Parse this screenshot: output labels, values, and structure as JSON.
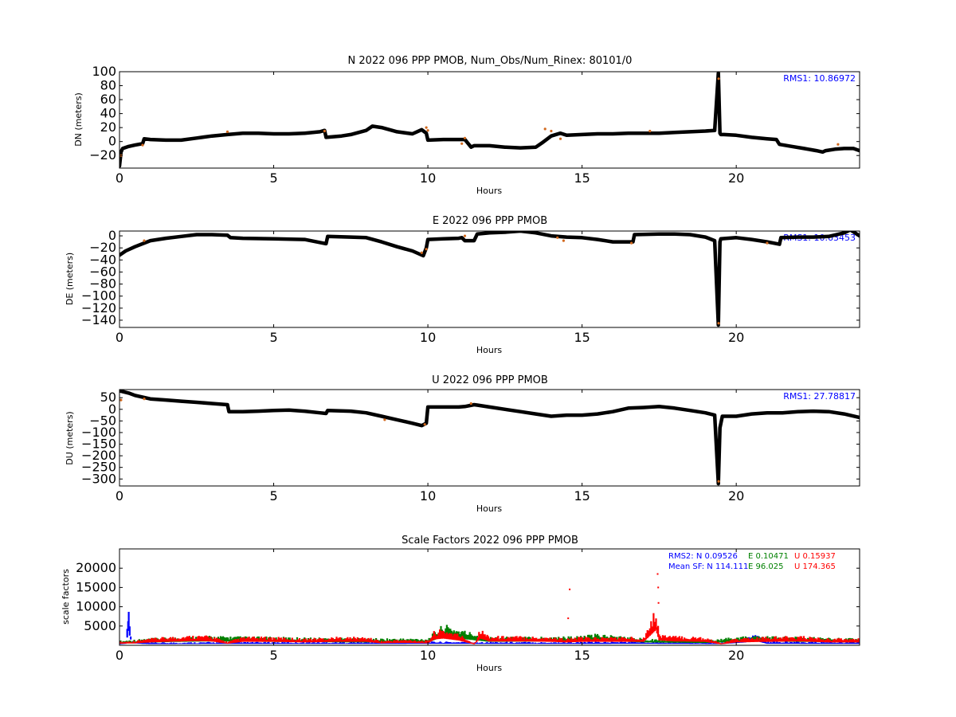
{
  "chart_data": [
    {
      "id": "n",
      "type": "scatter",
      "title": "N 2022 096 PPP  PMOB, Num_Obs/Num_Rinex: 80101/0",
      "xlabel": "Hours",
      "ylabel": "DN (meters)",
      "xlim": [
        0,
        24
      ],
      "ylim": [
        -38,
        100
      ],
      "xticks": [
        "0",
        "5",
        "10",
        "15",
        "20"
      ],
      "yticks": [
        "100",
        "80",
        "60",
        "40",
        "20",
        "0",
        "−20"
      ],
      "ytick_values": [
        100,
        80,
        60,
        40,
        20,
        0,
        -20
      ],
      "annotation": "RMS1: 10.86972",
      "colors": {
        "series": "#000000",
        "outlier": "#d2691e",
        "annotation": "#0000ff"
      },
      "series": [
        {
          "x": [
            0,
            0.05,
            0.1,
            0.3,
            0.5,
            0.75,
            0.8,
            1.0,
            1.5,
            2.0,
            2.5,
            3.0,
            3.5,
            4.0,
            4.5,
            5.0,
            5.5,
            6.0,
            6.5,
            6.65,
            6.7,
            7.2,
            7.5,
            8.0,
            8.2,
            8.5,
            9.0,
            9.5,
            9.8,
            9.95,
            10.0,
            10.5,
            11.0,
            11.2,
            11.4,
            11.5,
            12.0,
            12.5,
            13.0,
            13.5,
            13.7,
            14.0,
            14.3,
            14.5,
            15.0,
            15.5,
            16.0,
            16.5,
            17.0,
            17.5,
            18.0,
            18.5,
            19.0,
            19.3,
            19.42,
            19.47,
            19.5,
            19.6,
            20.0,
            20.5,
            21.0,
            21.3,
            21.4,
            21.8,
            22.2,
            22.6,
            22.8,
            22.9,
            23.2,
            23.5,
            23.8,
            24.0
          ],
          "y": [
            -35,
            -15,
            -10,
            -7,
            -5,
            -3,
            4,
            3,
            2,
            2,
            5,
            8,
            10,
            12,
            12,
            11,
            11,
            12,
            14,
            16,
            6,
            8,
            10,
            16,
            22,
            20,
            14,
            11,
            17,
            12,
            2,
            3,
            3,
            3,
            -8,
            -6,
            -6,
            -8,
            -9,
            -8,
            -2,
            8,
            12,
            9,
            10,
            11,
            11,
            12,
            12,
            12,
            13,
            14,
            15,
            16,
            98,
            12,
            10,
            10,
            9,
            6,
            4,
            3,
            -4,
            -7,
            -10,
            -13,
            -15,
            -13,
            -11,
            -10,
            -10,
            -13
          ]
        }
      ],
      "outliers": {
        "x": [
          0.05,
          0.75,
          3.5,
          6.65,
          9.95,
          10.0,
          11.1,
          11.2,
          13.8,
          14.0,
          14.3,
          17.2,
          19.43,
          23.3
        ],
        "y": [
          -20,
          -5,
          14,
          15,
          20,
          16,
          -3,
          5,
          18,
          15,
          4,
          15,
          90,
          -4
        ]
      }
    },
    {
      "id": "e",
      "type": "scatter",
      "title": "E 2022 096 PPP  PMOB",
      "xlabel": "Hours",
      "ylabel": "DE (meters)",
      "xlim": [
        0,
        24
      ],
      "ylim": [
        -152,
        8
      ],
      "xticks": [
        "0",
        "5",
        "10",
        "15",
        "20"
      ],
      "yticks": [
        "0",
        "−20",
        "−40",
        "−60",
        "−80",
        "−100",
        "−120",
        "−140"
      ],
      "ytick_values": [
        0,
        -20,
        -40,
        -60,
        -80,
        -100,
        -120,
        -140
      ],
      "annotation": "RMS1: 10.63453",
      "colors": {
        "series": "#000000",
        "outlier": "#d2691e",
        "annotation": "#0000ff"
      },
      "series": [
        {
          "x": [
            0,
            0.2,
            0.5,
            1.0,
            1.5,
            2.0,
            2.5,
            3.0,
            3.5,
            3.6,
            4.0,
            5.0,
            6.0,
            6.7,
            6.75,
            7.5,
            8.0,
            8.5,
            9.0,
            9.5,
            9.85,
            9.95,
            10.0,
            10.5,
            11.0,
            11.1,
            11.2,
            11.5,
            11.6,
            12.0,
            12.5,
            13.0,
            13.5,
            14.0,
            14.5,
            15.0,
            15.5,
            16.0,
            16.5,
            16.65,
            16.7,
            17.5,
            18.0,
            18.5,
            19.0,
            19.3,
            19.42,
            19.47,
            19.5,
            20.0,
            20.5,
            21.0,
            21.4,
            21.45,
            22.0,
            22.5,
            23.0,
            23.5,
            23.7,
            24.0
          ],
          "y": [
            -32,
            -25,
            -18,
            -8,
            -4,
            -1,
            2,
            2,
            1,
            -3,
            -4,
            -5,
            -6,
            -13,
            -1,
            -2,
            -3,
            -10,
            -18,
            -25,
            -33,
            -20,
            -6,
            -5,
            -4,
            -3,
            -8,
            -8,
            3,
            5,
            6,
            8,
            5,
            0,
            -2,
            -3,
            -6,
            -10,
            -10,
            -10,
            2,
            3,
            3,
            2,
            -2,
            -8,
            -148,
            -10,
            -5,
            -3,
            -6,
            -10,
            -14,
            -3,
            -2,
            -2,
            -1,
            5,
            10,
            0
          ]
        }
      ],
      "outliers": {
        "x": [
          0.05,
          0.8,
          9.8,
          9.95,
          11.2,
          14.2,
          14.4,
          16.6,
          19.43,
          21.0
        ],
        "y": [
          10,
          -8,
          -28,
          -22,
          0,
          -3,
          -8,
          -12,
          -145,
          -12
        ]
      }
    },
    {
      "id": "u",
      "type": "scatter",
      "title": "U 2022 096 PPP  PMOB",
      "xlabel": "Hours",
      "ylabel": "DU (meters)",
      "xlim": [
        0,
        24
      ],
      "ylim": [
        -330,
        85
      ],
      "xticks": [
        "0",
        "5",
        "10",
        "15",
        "20"
      ],
      "yticks": [
        "50",
        "0",
        "−50",
        "−100",
        "−150",
        "−200",
        "−250",
        "−300"
      ],
      "ytick_values": [
        50,
        0,
        -50,
        -100,
        -150,
        -200,
        -250,
        -300
      ],
      "annotation": "RMS1: 27.78817",
      "colors": {
        "series": "#000000",
        "outlier": "#d2691e",
        "annotation": "#0000ff"
      },
      "series": [
        {
          "x": [
            0,
            0.3,
            0.5,
            1.0,
            1.5,
            2.0,
            2.5,
            3.0,
            3.5,
            3.55,
            4.0,
            4.5,
            5.0,
            5.5,
            6.0,
            6.5,
            6.7,
            6.75,
            7.5,
            8.0,
            8.5,
            9.0,
            9.5,
            9.8,
            9.95,
            10.0,
            10.5,
            11.0,
            11.2,
            11.5,
            11.6,
            12.0,
            12.5,
            13.0,
            13.5,
            14.0,
            14.5,
            15.0,
            15.5,
            16.0,
            16.5,
            17.0,
            17.5,
            18.0,
            18.5,
            19.0,
            19.3,
            19.42,
            19.47,
            19.55,
            20.0,
            20.5,
            21.0,
            21.5,
            22.0,
            22.5,
            23.0,
            23.5,
            24.0
          ],
          "y": [
            80,
            70,
            60,
            45,
            40,
            35,
            30,
            25,
            20,
            -10,
            -10,
            -8,
            -5,
            -3,
            -8,
            -15,
            -18,
            -5,
            -8,
            -15,
            -30,
            -45,
            -60,
            -70,
            -60,
            10,
            10,
            10,
            12,
            20,
            18,
            10,
            0,
            -10,
            -20,
            -30,
            -25,
            -25,
            -20,
            -10,
            5,
            8,
            12,
            5,
            -5,
            -15,
            -25,
            -320,
            -80,
            -30,
            -30,
            -20,
            -15,
            -15,
            -10,
            -8,
            -10,
            -20,
            -35
          ]
        }
      ],
      "outliers": {
        "x": [
          0.05,
          0.8,
          8.6,
          9.9,
          11.4,
          19.43
        ],
        "y": [
          40,
          45,
          -45,
          -65,
          25,
          -310
        ]
      }
    },
    {
      "id": "sf",
      "type": "scatter",
      "title": "Scale Factors 2022 096 PPP  PMOB",
      "xlabel": "Hours",
      "ylabel": "scale factors",
      "xlim": [
        0,
        24
      ],
      "ylim": [
        0,
        25000
      ],
      "xticks": [
        "0",
        "5",
        "10",
        "15",
        "20"
      ],
      "yticks": [
        "20000",
        "15000",
        "10000",
        "5000"
      ],
      "ytick_values": [
        20000,
        15000,
        10000,
        5000
      ],
      "annotations": {
        "rms2": {
          "label": "RMS2: N  0.09526",
          "e": "E  0.10471",
          "u": "U  0.15937"
        },
        "mean": {
          "label": "Mean SF: N 114.111",
          "e": "E  96.025",
          "u": "U 174.365"
        }
      },
      "colors": {
        "N": "#0000ff",
        "E": "#008000",
        "U": "#ff0000"
      },
      "series": [
        {
          "name": "N",
          "x": [
            0,
            0.2,
            0.25,
            0.28,
            0.3,
            0.33,
            0.4,
            1.0,
            3.0,
            5.0,
            8.0,
            10.0,
            14.0,
            17.0,
            19.5,
            20.3,
            20.5,
            20.7,
            21.0,
            24.0
          ],
          "y": [
            500,
            800,
            4000,
            7500,
            8000,
            5000,
            1000,
            600,
            700,
            700,
            700,
            800,
            700,
            800,
            600,
            1500,
            2500,
            2000,
            800,
            700
          ]
        },
        {
          "name": "E",
          "x": [
            0,
            1.0,
            2.0,
            3.0,
            5.0,
            8.0,
            10.0,
            10.5,
            11.0,
            12.0,
            15.0,
            15.5,
            17.0,
            19.0,
            20.5,
            22.0,
            24.0
          ],
          "y": [
            1000,
            1500,
            1800,
            2000,
            1800,
            1500,
            1500,
            4500,
            3500,
            1800,
            2000,
            2500,
            1500,
            1200,
            2000,
            1800,
            1500
          ]
        },
        {
          "name": "U",
          "x": [
            0,
            0.5,
            1.0,
            1.5,
            2.0,
            2.5,
            3.0,
            3.5,
            4.0,
            5.0,
            6.0,
            7.0,
            8.0,
            8.5,
            9.0,
            9.5,
            10.0,
            10.2,
            10.5,
            11.0,
            11.5,
            11.7,
            12.0,
            13.0,
            14.0,
            14.5,
            15.0,
            16.0,
            17.0,
            17.4,
            17.5,
            18.0,
            19.0,
            19.5,
            20.0,
            21.0,
            22.0,
            22.5,
            23.0,
            24.0
          ],
          "y": [
            800,
            1000,
            1500,
            1800,
            2000,
            2200,
            2000,
            800,
            1800,
            1800,
            1500,
            1800,
            1800,
            1000,
            1200,
            1200,
            1000,
            3000,
            3500,
            2500,
            500,
            3500,
            2000,
            2000,
            1800,
            1500,
            1800,
            1800,
            1800,
            8000,
            2500,
            2000,
            1800,
            500,
            1500,
            1800,
            2000,
            1800,
            1500,
            1500
          ]
        }
      ],
      "spikes": {
        "x": [
          14.55,
          14.6,
          17.45,
          17.47,
          17.48
        ],
        "y": [
          7000,
          14500,
          18500,
          15000,
          11000
        ]
      }
    }
  ]
}
